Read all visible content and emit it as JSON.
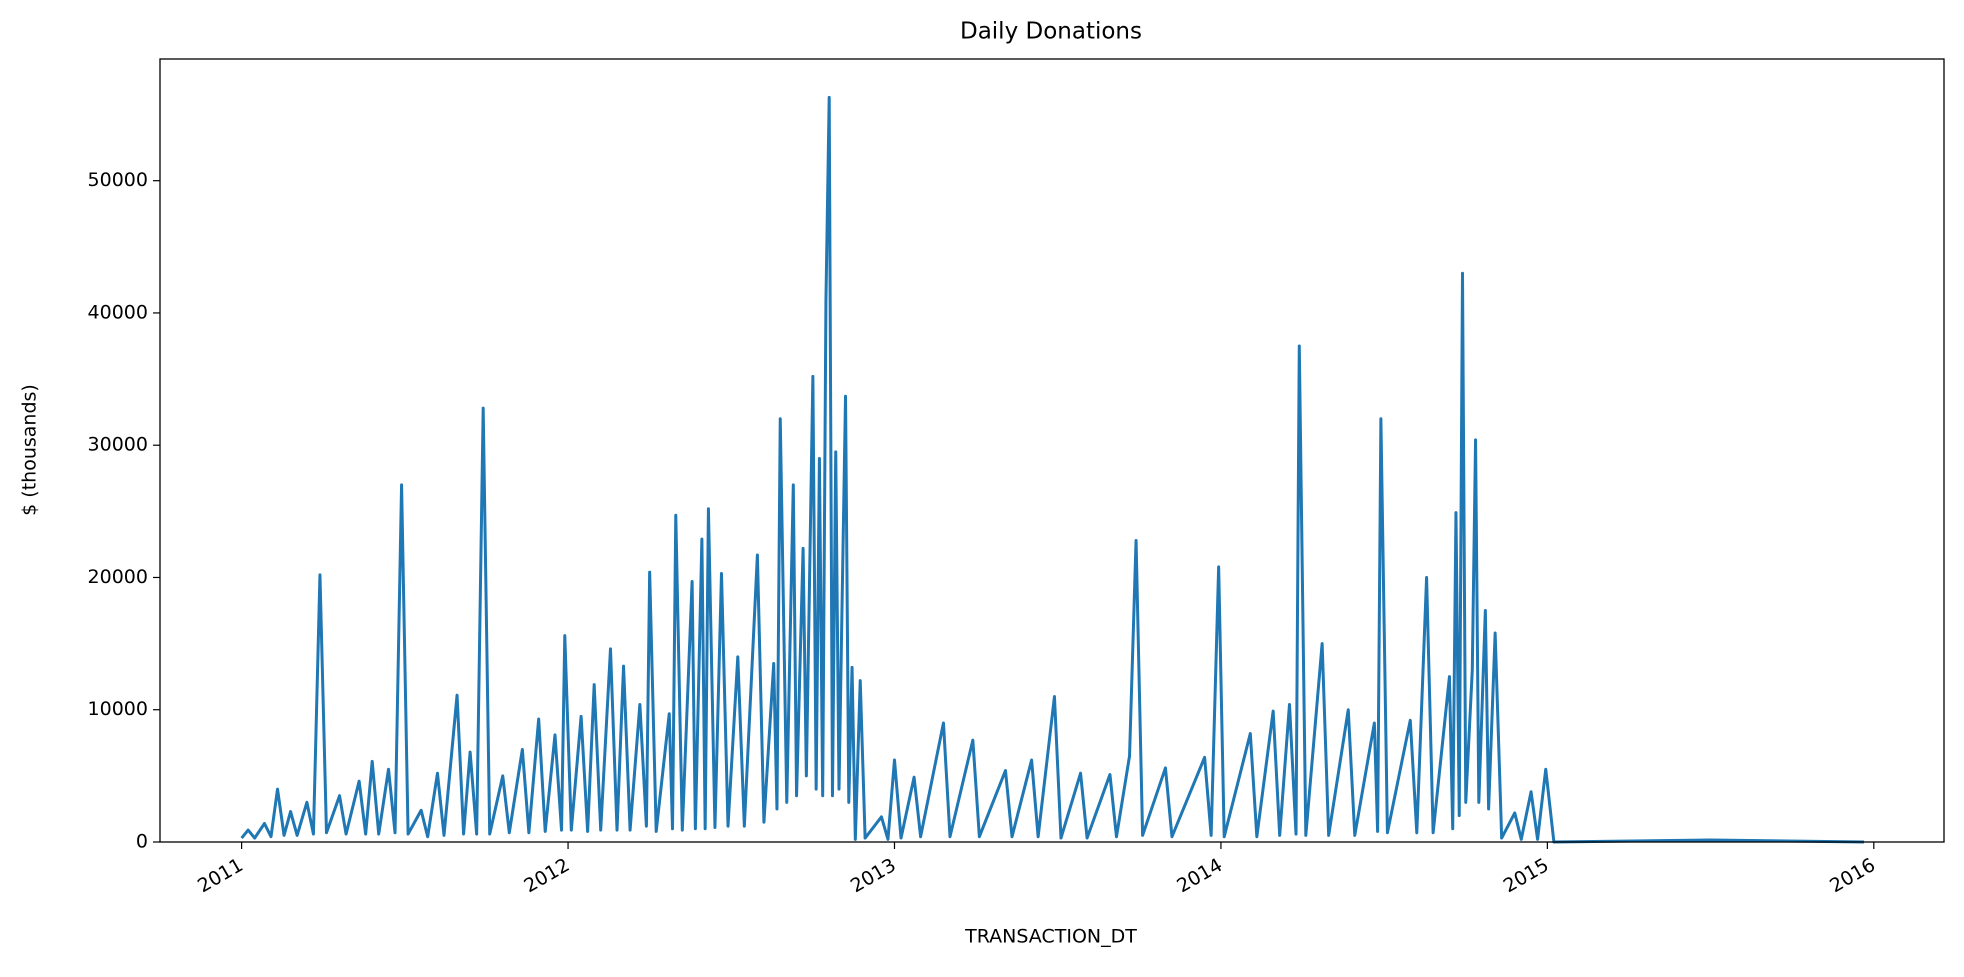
{
  "chart_data": {
    "type": "line",
    "title": "Daily Donations",
    "x_label": "TRANSACTION_DT",
    "y_label": "$ (thousands)",
    "xlim": [
      2010.75,
      2016.215
    ],
    "xticks": [
      2011,
      2012,
      2013,
      2014,
      2015,
      2016
    ],
    "ylim": [
      0,
      59200
    ],
    "yticks": [
      0,
      10000,
      20000,
      30000,
      40000,
      50000
    ],
    "grid": false,
    "series": [
      {
        "color": "#1f77b4",
        "x": [
          2011.0,
          2011.02,
          2011.04,
          2011.07,
          2011.09,
          2011.11,
          2011.13,
          2011.15,
          2011.17,
          2011.2,
          2011.22,
          2011.24,
          2011.26,
          2011.3,
          2011.32,
          2011.36,
          2011.38,
          2011.4,
          2011.42,
          2011.45,
          2011.47,
          2011.49,
          2011.51,
          2011.55,
          2011.57,
          2011.6,
          2011.62,
          2011.66,
          2011.68,
          2011.7,
          2011.72,
          2011.74,
          2011.76,
          2011.8,
          2011.82,
          2011.86,
          2011.88,
          2011.91,
          2011.93,
          2011.96,
          2011.98,
          2011.99,
          2012.01,
          2012.04,
          2012.06,
          2012.08,
          2012.1,
          2012.13,
          2012.15,
          2012.17,
          2012.19,
          2012.22,
          2012.24,
          2012.25,
          2012.27,
          2012.31,
          2012.32,
          2012.33,
          2012.35,
          2012.38,
          2012.39,
          2012.41,
          2012.42,
          2012.43,
          2012.45,
          2012.47,
          2012.49,
          2012.52,
          2012.54,
          2012.58,
          2012.6,
          2012.63,
          2012.64,
          2012.65,
          2012.67,
          2012.69,
          2012.7,
          2012.72,
          2012.73,
          2012.75,
          2012.76,
          2012.77,
          2012.78,
          2012.79,
          2012.8,
          2012.81,
          2012.82,
          2012.83,
          2012.85,
          2012.86,
          2012.87,
          2012.88,
          2012.895,
          2012.91,
          2012.96,
          2012.98,
          2013.0,
          2013.02,
          2013.06,
          2013.08,
          2013.15,
          2013.17,
          2013.24,
          2013.26,
          2013.34,
          2013.36,
          2013.42,
          2013.44,
          2013.49,
          2013.51,
          2013.57,
          2013.59,
          2013.66,
          2013.68,
          2013.72,
          2013.74,
          2013.76,
          2013.83,
          2013.85,
          2013.95,
          2013.97,
          2013.993,
          2014.01,
          2014.09,
          2014.11,
          2014.16,
          2014.18,
          2014.21,
          2014.23,
          2014.24,
          2014.26,
          2014.31,
          2014.33,
          2014.39,
          2014.41,
          2014.47,
          2014.48,
          2014.49,
          2014.51,
          2014.58,
          2014.6,
          2014.63,
          2014.65,
          2014.7,
          2014.71,
          2014.72,
          2014.73,
          2014.74,
          2014.75,
          2014.77,
          2014.78,
          2014.79,
          2014.81,
          2014.82,
          2014.84,
          2014.86,
          2014.9,
          2014.92,
          2014.95,
          2014.97,
          2014.995,
          2015.02,
          2015.5,
          2015.97
        ],
        "values": [
          300,
          900,
          300,
          1400,
          400,
          4000,
          500,
          2300,
          500,
          3000,
          600,
          20200,
          700,
          3500,
          600,
          4600,
          600,
          6100,
          600,
          5500,
          700,
          27000,
          600,
          2400,
          400,
          5200,
          500,
          11100,
          600,
          6800,
          600,
          32800,
          600,
          5000,
          700,
          7000,
          700,
          9300,
          800,
          8100,
          900,
          15600,
          900,
          9500,
          800,
          11900,
          900,
          14600,
          900,
          13300,
          900,
          10400,
          1200,
          20400,
          800,
          9700,
          1000,
          24700,
          900,
          19700,
          1000,
          22900,
          1000,
          25200,
          1100,
          20300,
          1200,
          14000,
          1200,
          21700,
          1500,
          13500,
          2500,
          32000,
          3000,
          27000,
          3500,
          22200,
          5000,
          35200,
          4000,
          29000,
          3500,
          40900,
          56300,
          3500,
          29500,
          4000,
          33700,
          3000,
          13200,
          200,
          12200,
          300,
          1900,
          200,
          6200,
          300,
          4900,
          400,
          9000,
          400,
          7700,
          400,
          5400,
          400,
          6200,
          400,
          11000,
          300,
          5200,
          300,
          5100,
          400,
          6500,
          22800,
          500,
          5600,
          400,
          6400,
          500,
          20800,
          400,
          8200,
          400,
          9900,
          500,
          10400,
          600,
          37500,
          500,
          15000,
          500,
          10000,
          500,
          9000,
          800,
          32000,
          700,
          9200,
          700,
          20000,
          700,
          12500,
          1000,
          24900,
          2000,
          43000,
          3000,
          13000,
          30400,
          3000,
          17500,
          2500,
          15800,
          300,
          2200,
          200,
          3800,
          200,
          5500,
          0,
          150,
          0
        ]
      }
    ]
  }
}
